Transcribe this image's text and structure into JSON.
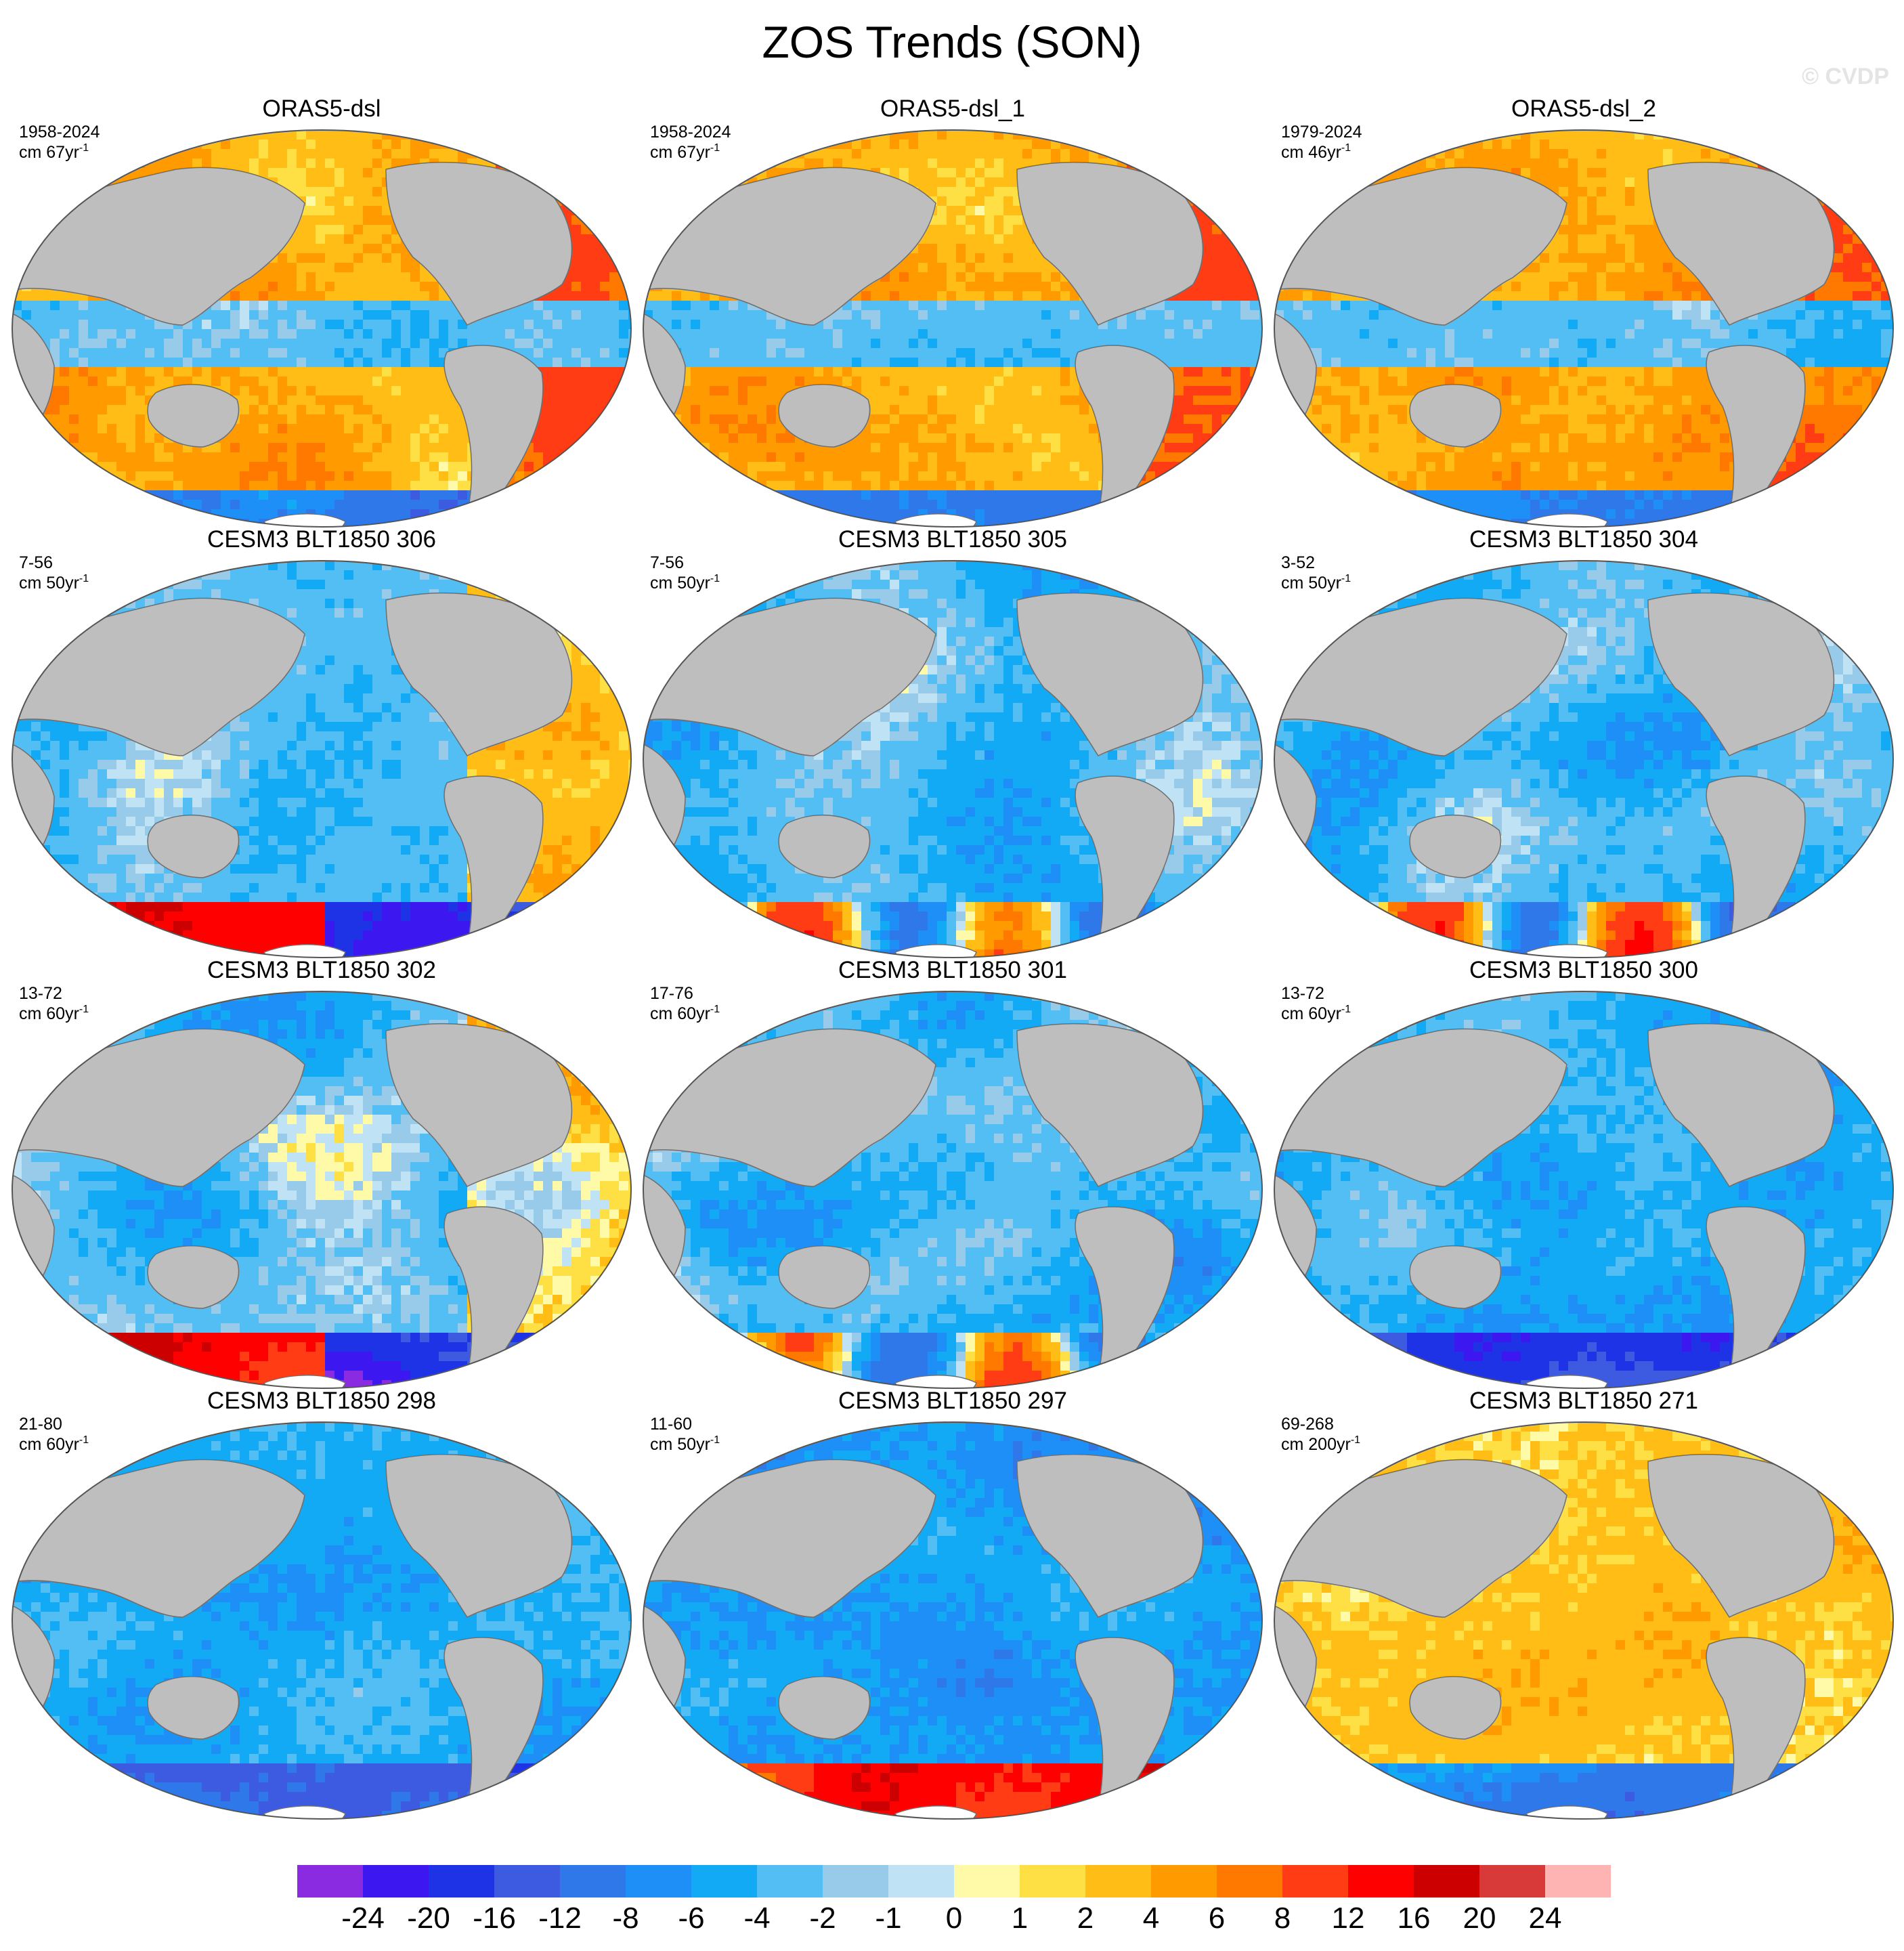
{
  "title": "ZOS Trends (SON)",
  "watermark": "© CVDP",
  "panels": [
    {
      "name": "ORAS5-dsl",
      "years": "1958-2024",
      "unit": "cm 67yr",
      "unit_exp": "-1",
      "pattern": "warm-subtropics"
    },
    {
      "name": "ORAS5-dsl_1",
      "years": "1958-2024",
      "unit": "cm 67yr",
      "unit_exp": "-1",
      "pattern": "warm-subtropics"
    },
    {
      "name": "ORAS5-dsl_2",
      "years": "1979-2024",
      "unit": "cm 46yr",
      "unit_exp": "-1",
      "pattern": "warm-subtropics"
    },
    {
      "name": "CESM3 BLT1850 306",
      "years": "7-56",
      "unit": "cm 50yr",
      "unit_exp": "-1",
      "pattern": "cool-pacific-warm-atlantic"
    },
    {
      "name": "CESM3 BLT1850 305",
      "years": "7-56",
      "unit": "cm 50yr",
      "unit_exp": "-1",
      "pattern": "cool-mixed"
    },
    {
      "name": "CESM3 BLT1850 304",
      "years": "3-52",
      "unit": "cm 50yr",
      "unit_exp": "-1",
      "pattern": "cool-mixed"
    },
    {
      "name": "CESM3 BLT1850 302",
      "years": "13-72",
      "unit": "cm 60yr",
      "unit_exp": "-1",
      "pattern": "cool-pacific-warm-atlantic"
    },
    {
      "name": "CESM3 BLT1850 301",
      "years": "17-76",
      "unit": "cm 60yr",
      "unit_exp": "-1",
      "pattern": "cool-mixed"
    },
    {
      "name": "CESM3 BLT1850 300",
      "years": "13-72",
      "unit": "cm 60yr",
      "unit_exp": "-1",
      "pattern": "cool"
    },
    {
      "name": "CESM3 BLT1850 298",
      "years": "21-80",
      "unit": "cm 60yr",
      "unit_exp": "-1",
      "pattern": "cool"
    },
    {
      "name": "CESM3 BLT1850 297",
      "years": "11-60",
      "unit": "cm 50yr",
      "unit_exp": "-1",
      "pattern": "cool-warm-south"
    },
    {
      "name": "CESM3 BLT1850 271",
      "years": "69-268",
      "unit": "cm 200yr",
      "unit_exp": "-1",
      "pattern": "warm"
    }
  ],
  "colorbar": {
    "labels": [
      "-24",
      "-20",
      "-16",
      "-12",
      "-8",
      "-6",
      "-4",
      "-2",
      "-1",
      "0",
      "1",
      "2",
      "4",
      "6",
      "8",
      "12",
      "16",
      "20",
      "24"
    ],
    "colors": [
      "#8a2be2",
      "#3c17f0",
      "#1e32e6",
      "#3d5be0",
      "#2f78ea",
      "#1f8ff8",
      "#12a9f5",
      "#52bef4",
      "#98cbea",
      "#bfe3f5",
      "#fffaa8",
      "#ffe044",
      "#ffbd16",
      "#ff9a00",
      "#ff7800",
      "#ff3c14",
      "#ff0000",
      "#cc0000",
      "#d83a3a",
      "#ffb4b4"
    ]
  },
  "colors": {
    "land": "#bebebe",
    "coast": "#6e6e6e",
    "background": "#ffffff"
  }
}
